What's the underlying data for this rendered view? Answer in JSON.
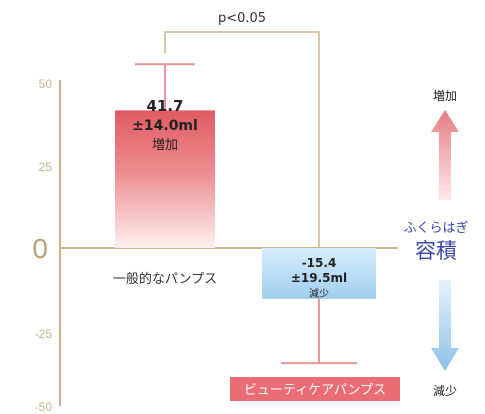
{
  "chart_data": {
    "type": "bar",
    "title": "",
    "xlabel": "",
    "ylabel": "",
    "ylim": [
      -50,
      50
    ],
    "yticks": [
      "50",
      "25",
      "0",
      "-25",
      "-50"
    ],
    "categories": [
      "一般的なパンプス",
      "ビューティケアパンプス"
    ],
    "values": [
      41.7,
      -15.4
    ],
    "errors": [
      14.0,
      19.5
    ],
    "bar_labels": [
      {
        "value": "41.7",
        "sd": "±14.0ml",
        "change": "増加"
      },
      {
        "value": "-15.4",
        "sd": "±19.5ml",
        "change": "減少"
      }
    ],
    "bar_colors": [
      "#e3676b",
      "#a8d3ef"
    ],
    "legend_box_color": "#ea6d75",
    "significance": "p<0.05",
    "arrows": {
      "up_label": "増加",
      "down_label": "減少",
      "up_color": "#e4848a",
      "down_color": "#9cc9ea"
    },
    "measure": {
      "sub": "ふくらはぎ",
      "main": "容積",
      "color": "#3b4aa8"
    },
    "grid": false
  }
}
